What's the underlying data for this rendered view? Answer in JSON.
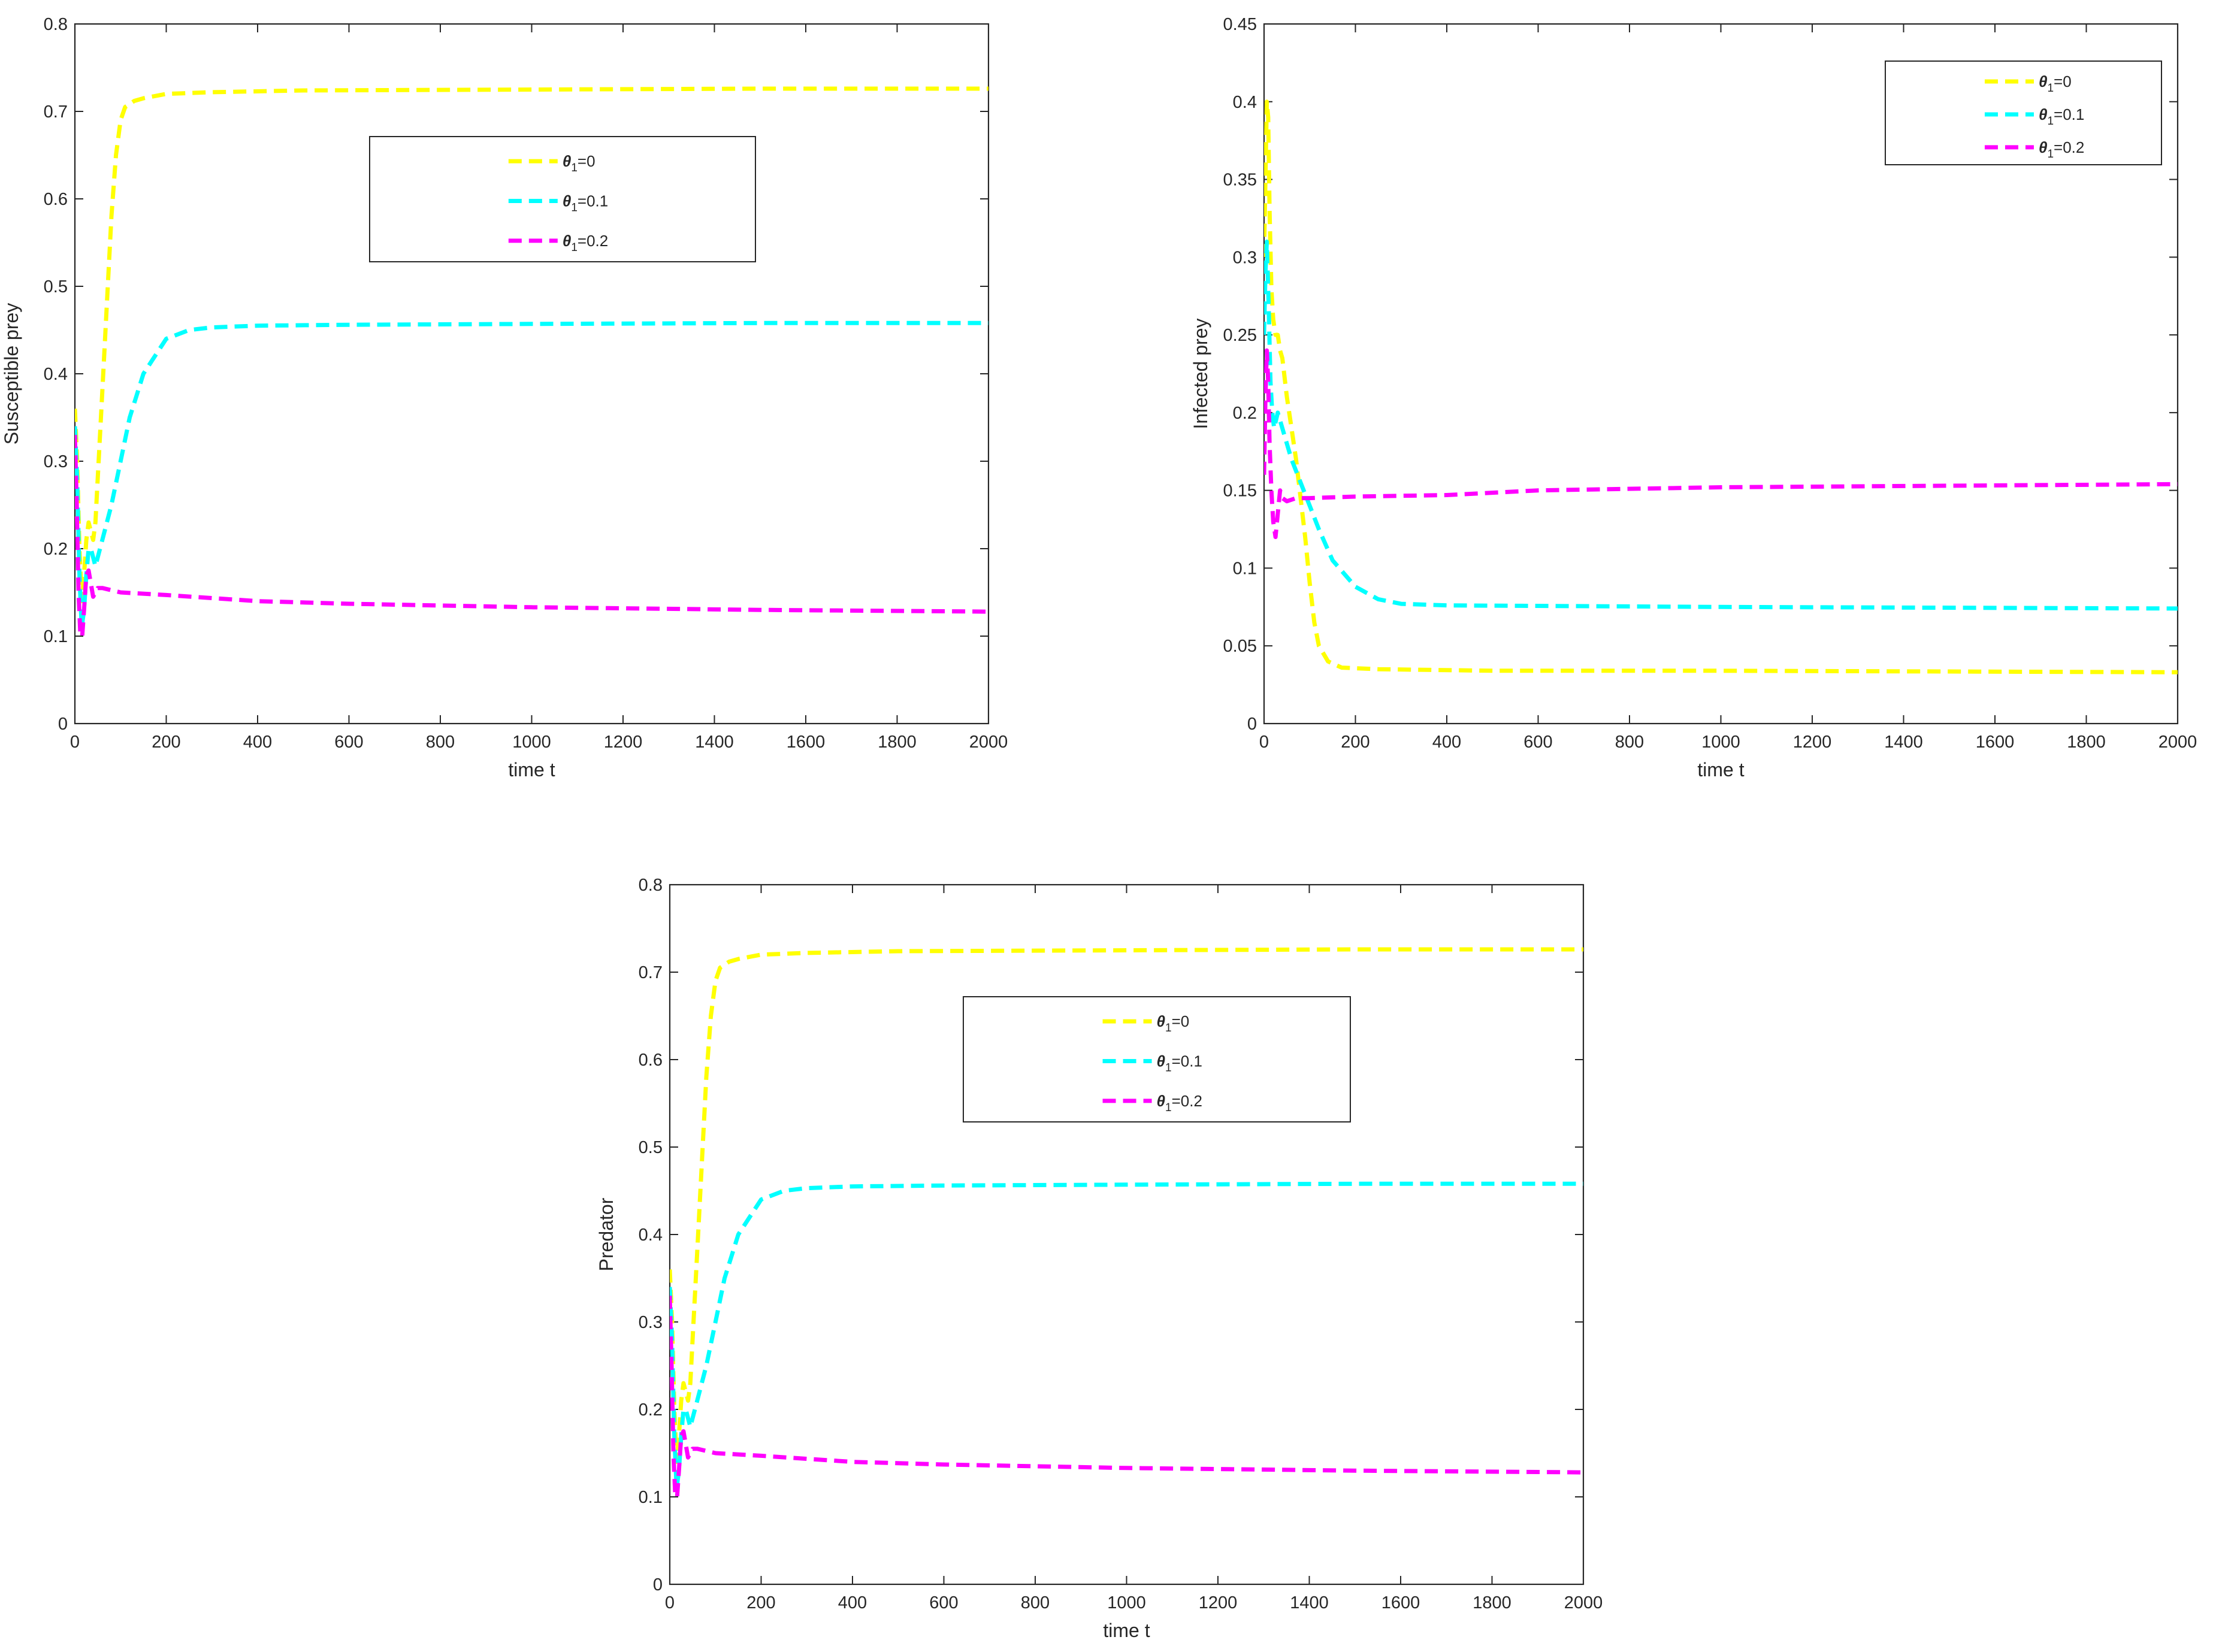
{
  "chart_data": [
    {
      "type": "line",
      "xlabel": "time t",
      "ylabel": "Susceptible prey",
      "xlim": [
        0,
        2000
      ],
      "ylim": [
        0,
        0.8
      ],
      "xticks": [
        "0",
        "200",
        "400",
        "600",
        "800",
        "1000",
        "1200",
        "1400",
        "1600",
        "1800",
        "2000"
      ],
      "yticks": [
        "0",
        "0.1",
        "0.2",
        "0.3",
        "0.4",
        "0.5",
        "0.6",
        "0.7",
        "0.8"
      ],
      "grid": false,
      "legend_position": "upper-center",
      "series": [
        {
          "name": "θ1=0",
          "color": "#ffff00",
          "legend_var": "θ",
          "legend_sub": "1",
          "legend_val": "=0",
          "points": [
            [
              0,
              0.36
            ],
            [
              5,
              0.3
            ],
            [
              10,
              0.2
            ],
            [
              15,
              0.14
            ],
            [
              20,
              0.17
            ],
            [
              25,
              0.21
            ],
            [
              30,
              0.23
            ],
            [
              35,
              0.22
            ],
            [
              40,
              0.21
            ],
            [
              45,
              0.23
            ],
            [
              50,
              0.28
            ],
            [
              60,
              0.38
            ],
            [
              70,
              0.48
            ],
            [
              80,
              0.58
            ],
            [
              90,
              0.65
            ],
            [
              100,
              0.69
            ],
            [
              110,
              0.705
            ],
            [
              130,
              0.712
            ],
            [
              150,
              0.715
            ],
            [
              200,
              0.72
            ],
            [
              300,
              0.722
            ],
            [
              500,
              0.724
            ],
            [
              1000,
              0.725
            ],
            [
              1500,
              0.726
            ],
            [
              2000,
              0.726
            ]
          ]
        },
        {
          "name": "θ1=0.1",
          "color": "#00ffff",
          "legend_var": "θ",
          "legend_sub": "1",
          "legend_val": "=0.1",
          "points": [
            [
              0,
              0.34
            ],
            [
              5,
              0.28
            ],
            [
              10,
              0.17
            ],
            [
              15,
              0.11
            ],
            [
              20,
              0.13
            ],
            [
              25,
              0.17
            ],
            [
              30,
              0.2
            ],
            [
              35,
              0.2
            ],
            [
              40,
              0.19
            ],
            [
              45,
              0.18
            ],
            [
              50,
              0.19
            ],
            [
              60,
              0.21
            ],
            [
              80,
              0.25
            ],
            [
              100,
              0.3
            ],
            [
              120,
              0.35
            ],
            [
              150,
              0.4
            ],
            [
              200,
              0.44
            ],
            [
              250,
              0.45
            ],
            [
              300,
              0.453
            ],
            [
              400,
              0.455
            ],
            [
              600,
              0.456
            ],
            [
              1000,
              0.457
            ],
            [
              1500,
              0.458
            ],
            [
              2000,
              0.458
            ]
          ]
        },
        {
          "name": "θ1=0.2",
          "color": "#ff00ff",
          "legend_var": "θ",
          "legend_sub": "1",
          "legend_val": "=0.2",
          "points": [
            [
              0,
              0.33
            ],
            [
              4,
              0.25
            ],
            [
              8,
              0.15
            ],
            [
              12,
              0.1
            ],
            [
              16,
              0.1
            ],
            [
              20,
              0.13
            ],
            [
              25,
              0.17
            ],
            [
              30,
              0.175
            ],
            [
              35,
              0.16
            ],
            [
              40,
              0.145
            ],
            [
              50,
              0.155
            ],
            [
              60,
              0.155
            ],
            [
              100,
              0.15
            ],
            [
              200,
              0.147
            ],
            [
              400,
              0.14
            ],
            [
              600,
              0.137
            ],
            [
              1000,
              0.133
            ],
            [
              1500,
              0.13
            ],
            [
              2000,
              0.128
            ]
          ]
        }
      ]
    },
    {
      "type": "line",
      "xlabel": "time t",
      "ylabel": "Infected prey",
      "xlim": [
        0,
        2000
      ],
      "ylim": [
        0,
        0.45
      ],
      "xticks": [
        "0",
        "200",
        "400",
        "600",
        "800",
        "1000",
        "1200",
        "1400",
        "1600",
        "1800",
        "2000"
      ],
      "yticks": [
        "0",
        "0.05",
        "0.1",
        "0.15",
        "0.2",
        "0.25",
        "0.3",
        "0.35",
        "0.4",
        "0.45"
      ],
      "grid": false,
      "legend_position": "top-right",
      "series": [
        {
          "name": "θ1=0",
          "color": "#ffff00",
          "legend_var": "θ",
          "legend_sub": "1",
          "legend_val": "=0",
          "points": [
            [
              0,
              0.3
            ],
            [
              3,
              0.35
            ],
            [
              6,
              0.4
            ],
            [
              9,
              0.39
            ],
            [
              12,
              0.33
            ],
            [
              16,
              0.28
            ],
            [
              20,
              0.26
            ],
            [
              25,
              0.25
            ],
            [
              30,
              0.25
            ],
            [
              35,
              0.24
            ],
            [
              40,
              0.235
            ],
            [
              50,
              0.21
            ],
            [
              60,
              0.19
            ],
            [
              70,
              0.17
            ],
            [
              80,
              0.145
            ],
            [
              90,
              0.12
            ],
            [
              100,
              0.09
            ],
            [
              110,
              0.065
            ],
            [
              120,
              0.05
            ],
            [
              140,
              0.04
            ],
            [
              170,
              0.036
            ],
            [
              250,
              0.035
            ],
            [
              500,
              0.034
            ],
            [
              1000,
              0.034
            ],
            [
              2000,
              0.033
            ]
          ]
        },
        {
          "name": "θ1=0.1",
          "color": "#00ffff",
          "legend_var": "θ",
          "legend_sub": "1",
          "legend_val": "=0.1",
          "points": [
            [
              0,
              0.25
            ],
            [
              3,
              0.29
            ],
            [
              6,
              0.31
            ],
            [
              10,
              0.27
            ],
            [
              14,
              0.22
            ],
            [
              18,
              0.2
            ],
            [
              22,
              0.19
            ],
            [
              26,
              0.195
            ],
            [
              30,
              0.2
            ],
            [
              35,
              0.195
            ],
            [
              40,
              0.19
            ],
            [
              50,
              0.18
            ],
            [
              60,
              0.17
            ],
            [
              80,
              0.155
            ],
            [
              100,
              0.14
            ],
            [
              120,
              0.125
            ],
            [
              150,
              0.105
            ],
            [
              200,
              0.088
            ],
            [
              250,
              0.08
            ],
            [
              300,
              0.077
            ],
            [
              400,
              0.076
            ],
            [
              1000,
              0.075
            ],
            [
              2000,
              0.074
            ]
          ]
        },
        {
          "name": "θ1=0.2",
          "color": "#ff00ff",
          "legend_var": "θ",
          "legend_sub": "1",
          "legend_val": "=0.2",
          "points": [
            [
              0,
              0.16
            ],
            [
              3,
              0.21
            ],
            [
              6,
              0.24
            ],
            [
              9,
              0.22
            ],
            [
              12,
              0.18
            ],
            [
              16,
              0.15
            ],
            [
              20,
              0.13
            ],
            [
              25,
              0.12
            ],
            [
              30,
              0.135
            ],
            [
              35,
              0.15
            ],
            [
              40,
              0.145
            ],
            [
              50,
              0.143
            ],
            [
              70,
              0.145
            ],
            [
              100,
              0.145
            ],
            [
              200,
              0.146
            ],
            [
              400,
              0.147
            ],
            [
              600,
              0.15
            ],
            [
              1000,
              0.152
            ],
            [
              1500,
              0.153
            ],
            [
              2000,
              0.154
            ]
          ]
        }
      ]
    },
    {
      "type": "line",
      "xlabel": "time t",
      "ylabel": "Predator",
      "xlim": [
        0,
        2000
      ],
      "ylim": [
        0,
        0.8
      ],
      "xticks": [
        "0",
        "200",
        "400",
        "600",
        "800",
        "1000",
        "1200",
        "1400",
        "1600",
        "1800",
        "2000"
      ],
      "yticks": [
        "0",
        "0.1",
        "0.2",
        "0.3",
        "0.4",
        "0.5",
        "0.6",
        "0.7",
        "0.8"
      ],
      "grid": false,
      "legend_position": "upper-center",
      "series": [
        {
          "name": "θ1=0",
          "color": "#ffff00",
          "legend_var": "θ",
          "legend_sub": "1",
          "legend_val": "=0",
          "points": [
            [
              0,
              0.36
            ],
            [
              5,
              0.3
            ],
            [
              10,
              0.2
            ],
            [
              15,
              0.14
            ],
            [
              20,
              0.17
            ],
            [
              25,
              0.21
            ],
            [
              30,
              0.23
            ],
            [
              35,
              0.22
            ],
            [
              40,
              0.21
            ],
            [
              45,
              0.23
            ],
            [
              50,
              0.28
            ],
            [
              60,
              0.38
            ],
            [
              70,
              0.48
            ],
            [
              80,
              0.58
            ],
            [
              90,
              0.65
            ],
            [
              100,
              0.69
            ],
            [
              110,
              0.705
            ],
            [
              130,
              0.712
            ],
            [
              150,
              0.715
            ],
            [
              200,
              0.72
            ],
            [
              300,
              0.722
            ],
            [
              500,
              0.724
            ],
            [
              1000,
              0.725
            ],
            [
              1500,
              0.726
            ],
            [
              2000,
              0.726
            ]
          ]
        },
        {
          "name": "θ1=0.1",
          "color": "#00ffff",
          "legend_var": "θ",
          "legend_sub": "1",
          "legend_val": "=0.1",
          "points": [
            [
              0,
              0.34
            ],
            [
              5,
              0.28
            ],
            [
              10,
              0.17
            ],
            [
              15,
              0.11
            ],
            [
              20,
              0.13
            ],
            [
              25,
              0.17
            ],
            [
              30,
              0.2
            ],
            [
              35,
              0.2
            ],
            [
              40,
              0.19
            ],
            [
              45,
              0.18
            ],
            [
              50,
              0.19
            ],
            [
              60,
              0.21
            ],
            [
              80,
              0.25
            ],
            [
              100,
              0.3
            ],
            [
              120,
              0.35
            ],
            [
              150,
              0.4
            ],
            [
              200,
              0.44
            ],
            [
              250,
              0.45
            ],
            [
              300,
              0.453
            ],
            [
              400,
              0.455
            ],
            [
              600,
              0.456
            ],
            [
              1000,
              0.457
            ],
            [
              1500,
              0.458
            ],
            [
              2000,
              0.458
            ]
          ]
        },
        {
          "name": "θ1=0.2",
          "color": "#ff00ff",
          "legend_var": "θ",
          "legend_sub": "1",
          "legend_val": "=0.2",
          "points": [
            [
              0,
              0.33
            ],
            [
              4,
              0.25
            ],
            [
              8,
              0.15
            ],
            [
              12,
              0.1
            ],
            [
              16,
              0.1
            ],
            [
              20,
              0.13
            ],
            [
              25,
              0.17
            ],
            [
              30,
              0.175
            ],
            [
              35,
              0.16
            ],
            [
              40,
              0.145
            ],
            [
              50,
              0.155
            ],
            [
              60,
              0.155
            ],
            [
              100,
              0.15
            ],
            [
              200,
              0.147
            ],
            [
              400,
              0.14
            ],
            [
              600,
              0.137
            ],
            [
              1000,
              0.133
            ],
            [
              1500,
              0.13
            ],
            [
              2000,
              0.128
            ]
          ]
        }
      ]
    }
  ]
}
